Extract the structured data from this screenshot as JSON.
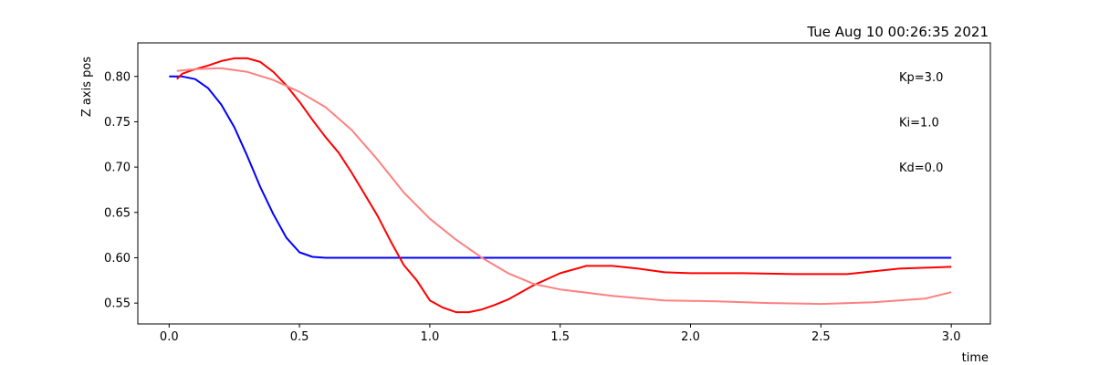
{
  "chart_data": {
    "type": "line",
    "title": "Tue Aug 10 00:26:35 2021",
    "xlabel": "time",
    "ylabel": "Z axis pos",
    "xlim": [
      -0.12,
      3.15
    ],
    "ylim": [
      0.527,
      0.837
    ],
    "xticks": [
      {
        "value": 0.0,
        "label": "0.0"
      },
      {
        "value": 0.5,
        "label": "0.5"
      },
      {
        "value": 1.0,
        "label": "1.0"
      },
      {
        "value": 1.5,
        "label": "1.5"
      },
      {
        "value": 2.0,
        "label": "2.0"
      },
      {
        "value": 2.5,
        "label": "2.5"
      },
      {
        "value": 3.0,
        "label": "3.0"
      }
    ],
    "yticks": [
      {
        "value": 0.55,
        "label": "0.55"
      },
      {
        "value": 0.6,
        "label": "0.60"
      },
      {
        "value": 0.65,
        "label": "0.65"
      },
      {
        "value": 0.7,
        "label": "0.70"
      },
      {
        "value": 0.75,
        "label": "0.75"
      },
      {
        "value": 0.8,
        "label": "0.80"
      }
    ],
    "grid": false,
    "annotations": [
      {
        "text": "Kp=3.0",
        "x": 2.8,
        "y": 0.8
      },
      {
        "text": "Ki=1.0",
        "x": 2.8,
        "y": 0.75
      },
      {
        "text": "Kd=0.0",
        "x": 2.8,
        "y": 0.7
      }
    ],
    "series": [
      {
        "color": "#0000ff",
        "x": [
          0.0,
          0.05,
          0.1,
          0.15,
          0.2,
          0.25,
          0.3,
          0.35,
          0.4,
          0.45,
          0.5,
          0.55,
          0.6,
          0.8,
          1.0,
          1.5,
          2.0,
          2.5,
          3.0
        ],
        "y": [
          0.8,
          0.8,
          0.797,
          0.787,
          0.769,
          0.744,
          0.712,
          0.678,
          0.648,
          0.622,
          0.606,
          0.601,
          0.6,
          0.6,
          0.6,
          0.6,
          0.6,
          0.6,
          0.6
        ]
      },
      {
        "color": "#ff0000",
        "x": [
          0.03,
          0.05,
          0.1,
          0.15,
          0.2,
          0.25,
          0.3,
          0.35,
          0.4,
          0.45,
          0.5,
          0.55,
          0.6,
          0.65,
          0.7,
          0.75,
          0.8,
          0.85,
          0.9,
          0.95,
          1.0,
          1.05,
          1.1,
          1.15,
          1.2,
          1.25,
          1.3,
          1.4,
          1.5,
          1.6,
          1.7,
          1.8,
          1.9,
          2.0,
          2.2,
          2.4,
          2.6,
          2.8,
          3.0
        ],
        "y": [
          0.797,
          0.803,
          0.808,
          0.812,
          0.817,
          0.82,
          0.82,
          0.816,
          0.805,
          0.79,
          0.772,
          0.752,
          0.733,
          0.716,
          0.694,
          0.67,
          0.646,
          0.618,
          0.592,
          0.575,
          0.553,
          0.545,
          0.54,
          0.54,
          0.543,
          0.548,
          0.554,
          0.57,
          0.583,
          0.591,
          0.591,
          0.588,
          0.584,
          0.583,
          0.583,
          0.582,
          0.582,
          0.588,
          0.59
        ]
      },
      {
        "color": "#ff8080",
        "x": [
          0.03,
          0.1,
          0.2,
          0.3,
          0.4,
          0.5,
          0.6,
          0.7,
          0.8,
          0.9,
          1.0,
          1.1,
          1.2,
          1.3,
          1.4,
          1.5,
          1.7,
          1.9,
          2.1,
          2.3,
          2.5,
          2.7,
          2.9,
          3.0
        ],
        "y": [
          0.806,
          0.808,
          0.809,
          0.805,
          0.796,
          0.783,
          0.766,
          0.741,
          0.708,
          0.672,
          0.643,
          0.62,
          0.6,
          0.583,
          0.571,
          0.565,
          0.558,
          0.553,
          0.552,
          0.55,
          0.549,
          0.551,
          0.555,
          0.562
        ]
      }
    ]
  }
}
